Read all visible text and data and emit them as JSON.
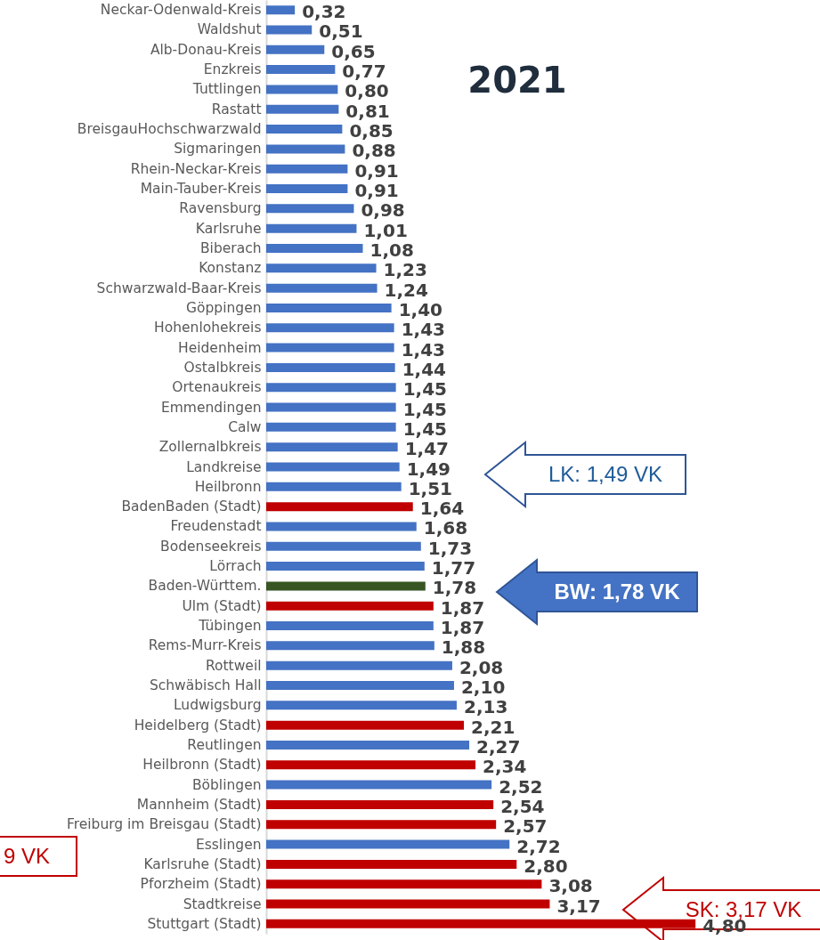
{
  "chart_data": {
    "type": "bar",
    "orientation": "horizontal",
    "title": "2021",
    "categories": [
      "Neckar-Odenwald-Kreis",
      "Waldshut",
      "Alb-Donau-Kreis",
      "Enzkreis",
      "Tuttlingen",
      "Rastatt",
      "BreisgauHochschwarzwald",
      "Sigmaringen",
      "Rhein-Neckar-Kreis",
      "Main-Tauber-Kreis",
      "Ravensburg",
      "Karlsruhe",
      "Biberach",
      "Konstanz",
      "Schwarzwald-Baar-Kreis",
      "Göppingen",
      "Hohenlohekreis",
      "Heidenheim",
      "Ostalbkreis",
      "Ortenaukreis",
      "Emmendingen",
      "Calw",
      "Zollernalbkreis",
      "Landkreise",
      "Heilbronn",
      "BadenBaden (Stadt)",
      "Freudenstadt",
      "Bodenseekreis",
      "Lörrach",
      "Baden-Württem.",
      "Ulm (Stadt)",
      "Tübingen",
      "Rems-Murr-Kreis",
      "Rottweil",
      "Schwäbisch Hall",
      "Ludwigsburg",
      "Heidelberg (Stadt)",
      "Reutlingen",
      "Heilbronn (Stadt)",
      "Böblingen",
      "Mannheim (Stadt)",
      "Freiburg im Breisgau (Stadt)",
      "Esslingen",
      "Karlsruhe (Stadt)",
      "Pforzheim (Stadt)",
      "Stadtkreise",
      "Stuttgart (Stadt)"
    ],
    "values": [
      0.32,
      0.51,
      0.65,
      0.77,
      0.8,
      0.81,
      0.85,
      0.88,
      0.91,
      0.91,
      0.98,
      1.01,
      1.08,
      1.23,
      1.24,
      1.4,
      1.43,
      1.43,
      1.44,
      1.45,
      1.45,
      1.45,
      1.47,
      1.49,
      1.51,
      1.64,
      1.68,
      1.73,
      1.77,
      1.78,
      1.87,
      1.87,
      1.88,
      2.08,
      2.1,
      2.13,
      2.21,
      2.27,
      2.34,
      2.52,
      2.54,
      2.57,
      2.72,
      2.8,
      3.08,
      3.17,
      4.8
    ],
    "value_labels": [
      "0,32",
      "0,51",
      "0,65",
      "0,77",
      "0,80",
      "0,81",
      "0,85",
      "0,88",
      "0,91",
      "0,91",
      "0,98",
      "1,01",
      "1,08",
      "1,23",
      "1,24",
      "1,40",
      "1,43",
      "1,43",
      "1,44",
      "1,45",
      "1,45",
      "1,45",
      "1,47",
      "1,49",
      "1,51",
      "1,64",
      "1,68",
      "1,73",
      "1,77",
      "1,78",
      "1,87",
      "1,87",
      "1,88",
      "2,08",
      "2,10",
      "2,13",
      "2,21",
      "2,27",
      "2,34",
      "2,52",
      "2,54",
      "2,57",
      "2,72",
      "2,80",
      "3,08",
      "3,17",
      "4,80"
    ],
    "colors": [
      "#4472c4",
      "#4472c4",
      "#4472c4",
      "#4472c4",
      "#4472c4",
      "#4472c4",
      "#4472c4",
      "#4472c4",
      "#4472c4",
      "#4472c4",
      "#4472c4",
      "#4472c4",
      "#4472c4",
      "#4472c4",
      "#4472c4",
      "#4472c4",
      "#4472c4",
      "#4472c4",
      "#4472c4",
      "#4472c4",
      "#4472c4",
      "#4472c4",
      "#4472c4",
      "#4472c4",
      "#4472c4",
      "#c00000",
      "#4472c4",
      "#4472c4",
      "#4472c4",
      "#375623",
      "#c00000",
      "#4472c4",
      "#4472c4",
      "#4472c4",
      "#4472c4",
      "#4472c4",
      "#c00000",
      "#4472c4",
      "#c00000",
      "#4472c4",
      "#c00000",
      "#c00000",
      "#4472c4",
      "#c00000",
      "#c00000",
      "#c00000",
      "#c00000"
    ],
    "annotations": [
      "LK: 1,49 VK",
      "BW: 1,78 VK",
      "SK: 3,17 VK",
      "9 VK"
    ]
  }
}
